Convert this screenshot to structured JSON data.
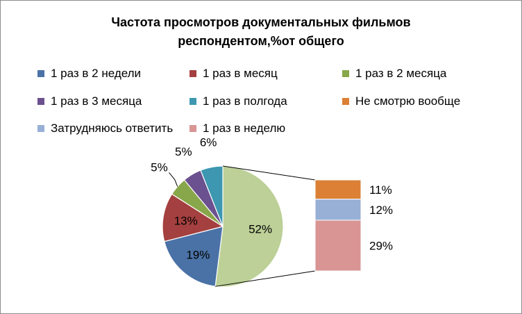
{
  "chart_data": {
    "type": "pie",
    "subtype": "pie-of-pie (bar of pie)",
    "title": "Частота просмотров документальных фильмов респондентом,%от общего",
    "title_lines": [
      "Частота просмотров документальных фильмов",
      "респондентом,%от общего"
    ],
    "legend_position": "top",
    "legend": [
      {
        "label": "1 раз в 2 недели",
        "color": "#4a72a6"
      },
      {
        "label": "1 раз в месяц",
        "color": "#a4403f"
      },
      {
        "label": "1 раз в 2 месяца",
        "color": "#88a64a"
      },
      {
        "label": "1 раз в 3 месяца",
        "color": "#6b518f"
      },
      {
        "label": "1 раз в полгода",
        "color": "#3d97b0"
      },
      {
        "label": "Не смотрю вообще",
        "color": "#db8035"
      },
      {
        "label": "Затрудняюсь ответить",
        "color": "#98afd6"
      },
      {
        "label": "1 раз в неделю",
        "color": "#d89594"
      }
    ],
    "pie": {
      "slices": [
        {
          "label": "1 раз в 2 недели",
          "value": 19,
          "display": "19%",
          "color": "#4a72a6"
        },
        {
          "label": "1 раз в месяц",
          "value": 13,
          "display": "13%",
          "color": "#a4403f"
        },
        {
          "label": "1 раз в 2 месяца",
          "value": 5,
          "display": "5%",
          "color": "#88a64a"
        },
        {
          "label": "1 раз в 3 месяца",
          "value": 5,
          "display": "5%",
          "color": "#6b518f"
        },
        {
          "label": "1 раз в полгода",
          "value": 6,
          "display": "6%",
          "color": "#3d97b0"
        }
      ],
      "other": {
        "value": 52,
        "display": "52%",
        "color": "#bcd097"
      }
    },
    "breakout_bar": {
      "segments": [
        {
          "label": "Не смотрю вообще",
          "value": 11,
          "display": "11%",
          "color": "#db8035"
        },
        {
          "label": "Затрудняюсь ответить",
          "value": 12,
          "display": "12%",
          "color": "#98afd6"
        },
        {
          "label": "1 раз в неделю",
          "value": 29,
          "display": "29%",
          "color": "#d89594"
        }
      ]
    }
  }
}
